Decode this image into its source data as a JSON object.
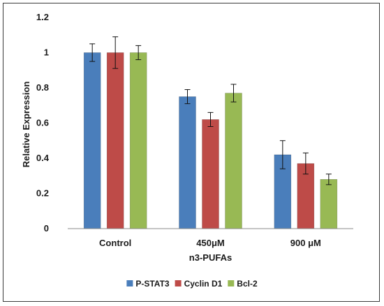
{
  "chart_data": {
    "type": "bar",
    "title": "",
    "xlabel": "n3-PUFAs",
    "ylabel": "Relative Expression",
    "categories": [
      "Control",
      "450μM",
      "900 μM"
    ],
    "ylim": [
      0,
      1.2
    ],
    "yticks": [
      "0",
      "0.2",
      "0.4",
      "0.6",
      "0.8",
      "1",
      "1.2"
    ],
    "grid": false,
    "legend_position": "bottom",
    "series": [
      {
        "name": "P-STAT3",
        "color": "#4a7ebb",
        "values": [
          1.0,
          0.75,
          0.42
        ],
        "errors": [
          0.05,
          0.04,
          0.08
        ]
      },
      {
        "name": "Cyclin D1",
        "color": "#be4b48",
        "values": [
          1.0,
          0.62,
          0.37
        ],
        "errors": [
          0.09,
          0.04,
          0.06
        ]
      },
      {
        "name": "Bcl-2",
        "color": "#98b954",
        "values": [
          1.0,
          0.77,
          0.28
        ],
        "errors": [
          0.04,
          0.05,
          0.03
        ]
      }
    ]
  }
}
